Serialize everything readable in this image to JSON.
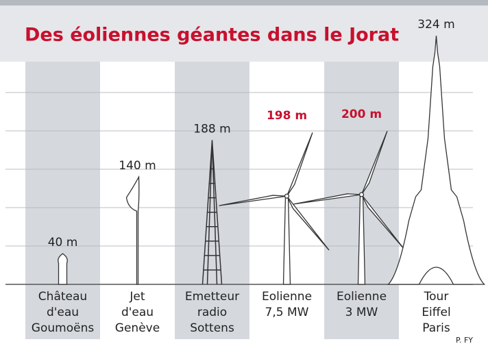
{
  "chart_data": {
    "type": "pictogram",
    "title": "Des éoliennes géantes dans le Jorat",
    "categories": [
      [
        "Château",
        "d'eau",
        "Goumoëns"
      ],
      [
        "Jet",
        "d'eau",
        "Genève"
      ],
      [
        "Emetteur",
        "radio",
        "Sottens"
      ],
      [
        "Eolienne",
        "7,5 MW"
      ],
      [
        "Eolienne",
        "3 MW"
      ],
      [
        "Tour",
        "Eiffel",
        "Paris"
      ]
    ],
    "values": [
      40,
      140,
      188,
      198,
      200,
      324
    ],
    "value_labels": [
      "40 m",
      "140 m",
      "188 m",
      "198 m",
      "200 m",
      "324 m"
    ],
    "label_colors": [
      "#222222",
      "#222222",
      "#222222",
      "#c8102e",
      "#c8102e",
      "#222222"
    ],
    "ylim": [
      0,
      350
    ],
    "yticks": [
      0,
      50,
      100,
      150,
      200,
      250
    ],
    "grid": true,
    "source": "P. FY"
  }
}
